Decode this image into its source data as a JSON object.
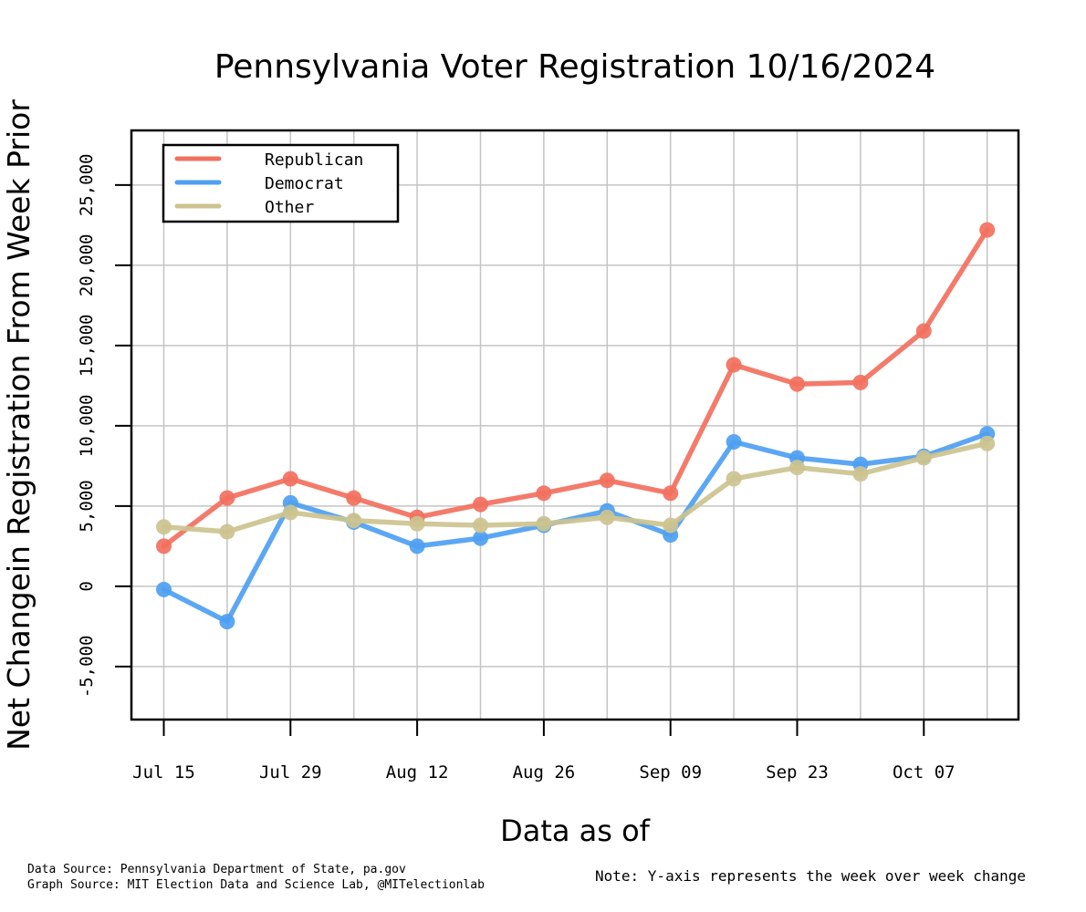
{
  "chart_data": {
    "type": "line",
    "title": "Pennsylvania Voter Registration 10/16/2024",
    "xlabel": "Data as of",
    "ylabel": "Net Changein Registration From Week Prior",
    "x_tick_labels": [
      "Jul 15",
      "Jul 29",
      "Aug 12",
      "Aug 26",
      "Sep 09",
      "Sep 23",
      "Oct 07"
    ],
    "y_tick_labels": [
      "-5,000",
      "0",
      "5,000",
      "10,000",
      "15,000",
      "20,000",
      "25,000"
    ],
    "y_ticks": [
      -5000,
      0,
      5000,
      10000,
      15000,
      20000,
      25000
    ],
    "ylim": [
      -8300,
      28400
    ],
    "num_points": 14,
    "grid": true,
    "legend_position": "top-left",
    "series": [
      {
        "name": "Republican",
        "color": "#F2705E",
        "values": [
          2500,
          5500,
          6700,
          5500,
          4300,
          5100,
          5800,
          6600,
          5800,
          13800,
          12600,
          12700,
          15900,
          22200
        ]
      },
      {
        "name": "Democrat",
        "color": "#4E9FF2",
        "values": [
          -200,
          -2200,
          5200,
          4000,
          2500,
          3000,
          3800,
          4700,
          3200,
          9000,
          8000,
          7600,
          8100,
          9500
        ]
      },
      {
        "name": "Other",
        "color": "#CCC38F",
        "values": [
          3700,
          3400,
          4600,
          4100,
          3900,
          3800,
          3900,
          4300,
          3800,
          6700,
          7400,
          7000,
          8000,
          8900
        ]
      }
    ]
  },
  "footer": {
    "source_line1": "Data Source: Pennsylvania Department of State, pa.gov",
    "source_line2": "Graph Source: MIT Election Data and Science Lab, @MITelectionlab"
  },
  "note": "Note: Y-axis represents the week over week change"
}
